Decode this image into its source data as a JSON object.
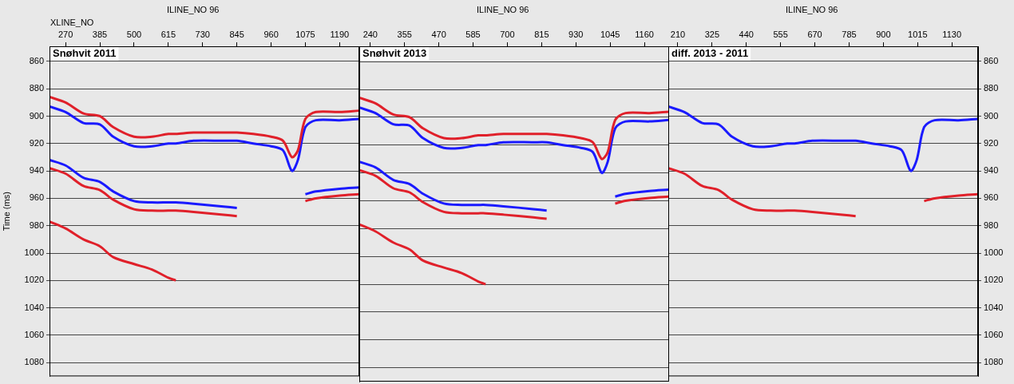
{
  "chart_data": [
    {
      "type": "line",
      "title": "Snøhvit 2011",
      "subtitle": "ILINE_NO 96",
      "xlabel": "XLINE_NO",
      "ylabel": "Time (ms)",
      "x": [
        216,
        270,
        330,
        385,
        430,
        500,
        560,
        615,
        640,
        700,
        800,
        845,
        900,
        960,
        1000,
        1030,
        1050,
        1075,
        1110,
        1190,
        1255
      ],
      "series": [
        {
          "color": "#e0202a",
          "values": [
            886,
            890,
            898,
            900,
            908,
            915,
            915,
            913,
            913,
            912,
            912,
            912,
            913,
            915,
            918,
            930,
            925,
            902,
            897,
            897,
            896
          ]
        },
        {
          "color": "#1a1aff",
          "values": [
            893,
            897,
            905,
            906,
            915,
            922,
            922,
            920,
            920,
            918,
            918,
            918,
            920,
            922,
            925,
            940,
            932,
            908,
            903,
            903,
            902
          ]
        },
        {
          "color": "#1a1aff",
          "values": [
            932,
            936,
            945,
            948,
            955,
            962,
            963,
            963,
            963,
            964,
            966,
            967,
            null,
            null,
            null,
            null,
            null,
            957,
            955,
            953,
            952
          ]
        },
        {
          "color": "#e0202a",
          "values": [
            938,
            942,
            951,
            954,
            961,
            968,
            969,
            969,
            969,
            970,
            972,
            973,
            null,
            null,
            null,
            null,
            null,
            962,
            960,
            958,
            957
          ]
        },
        {
          "color": "#e0202a",
          "values": [
            977,
            982,
            990,
            995,
            1003,
            1008,
            1012,
            1018,
            1020,
            null,
            null,
            null,
            null,
            null,
            null,
            null,
            null,
            null,
            null,
            null,
            null
          ]
        }
      ],
      "xlim": [
        216,
        1256
      ],
      "xticks": [
        270,
        385,
        500,
        615,
        730,
        845,
        960,
        1075,
        1190
      ],
      "ylim": [
        1090,
        849
      ],
      "yticks": [
        860,
        880,
        900,
        920,
        940,
        960,
        980,
        1000,
        1020,
        1040,
        1060,
        1080
      ],
      "grid": true
    },
    {
      "type": "line",
      "title": "Snøhvit 2013",
      "subtitle": "ILINE_NO 96",
      "x": [
        203,
        257,
        317,
        372,
        417,
        487,
        547,
        602,
        627,
        687,
        787,
        832,
        887,
        947,
        987,
        1017,
        1037,
        1062,
        1097,
        1177,
        1242
      ],
      "series": [
        {
          "color": "#e0202a",
          "values": [
            886,
            890,
            898,
            900,
            908,
            915,
            915,
            913,
            913,
            912,
            912,
            912,
            913,
            915,
            918,
            930,
            925,
            902,
            897,
            897,
            896
          ]
        },
        {
          "color": "#1a1aff",
          "values": [
            893,
            897,
            905,
            906,
            915,
            922,
            922,
            920,
            920,
            918,
            918,
            918,
            920,
            922,
            925,
            940,
            932,
            908,
            903,
            903,
            902
          ]
        },
        {
          "color": "#1a1aff",
          "values": [
            932,
            936,
            945,
            948,
            955,
            962,
            963,
            963,
            963,
            964,
            966,
            967,
            null,
            null,
            null,
            null,
            null,
            957,
            955,
            953,
            952
          ]
        },
        {
          "color": "#e0202a",
          "values": [
            938,
            942,
            951,
            954,
            961,
            968,
            969,
            969,
            969,
            970,
            972,
            973,
            null,
            null,
            null,
            null,
            null,
            962,
            960,
            958,
            957
          ]
        },
        {
          "color": "#e0202a",
          "values": [
            977,
            982,
            990,
            995,
            1003,
            1008,
            1012,
            1018,
            1020,
            null,
            null,
            null,
            null,
            null,
            null,
            null,
            null,
            null,
            null,
            null,
            null
          ]
        }
      ],
      "xlim": [
        203,
        1243
      ],
      "xticks": [
        240,
        355,
        470,
        585,
        700,
        815,
        930,
        1045,
        1160
      ],
      "ylim": [
        1090,
        849
      ],
      "yticks": [
        860,
        880,
        900,
        920,
        940,
        960,
        980,
        1000,
        1020,
        1040,
        1060,
        1080
      ],
      "grid": true,
      "tick_labels": "x"
    },
    {
      "type": "line",
      "title": "diff. 2013 - 2011",
      "subtitle": "ILINE_NO 96",
      "x": [
        178,
        232,
        292,
        347,
        392,
        462,
        522,
        577,
        602,
        662,
        762,
        807,
        862,
        922,
        962,
        992,
        1012,
        1037,
        1072,
        1152,
        1217
      ],
      "series": [
        {
          "color": "#1a1aff",
          "values": [
            893,
            897,
            905,
            906,
            915,
            922,
            922,
            920,
            920,
            918,
            918,
            918,
            920,
            922,
            925,
            940,
            932,
            908,
            903,
            903,
            902
          ]
        },
        {
          "color": "#e0202a",
          "values": [
            938,
            942,
            951,
            954,
            961,
            968,
            969,
            969,
            969,
            970,
            972,
            973,
            null,
            null,
            null,
            null,
            null,
            962,
            960,
            958,
            957
          ]
        }
      ],
      "xlim": [
        178,
        1218
      ],
      "xticks": [
        210,
        325,
        440,
        555,
        670,
        785,
        900,
        1015,
        1130
      ],
      "ylim": [
        1090,
        849
      ],
      "yticks": [
        860,
        880,
        900,
        920,
        940,
        960,
        980,
        1000,
        1020,
        1040,
        1060,
        1080
      ],
      "grid": true
    }
  ]
}
